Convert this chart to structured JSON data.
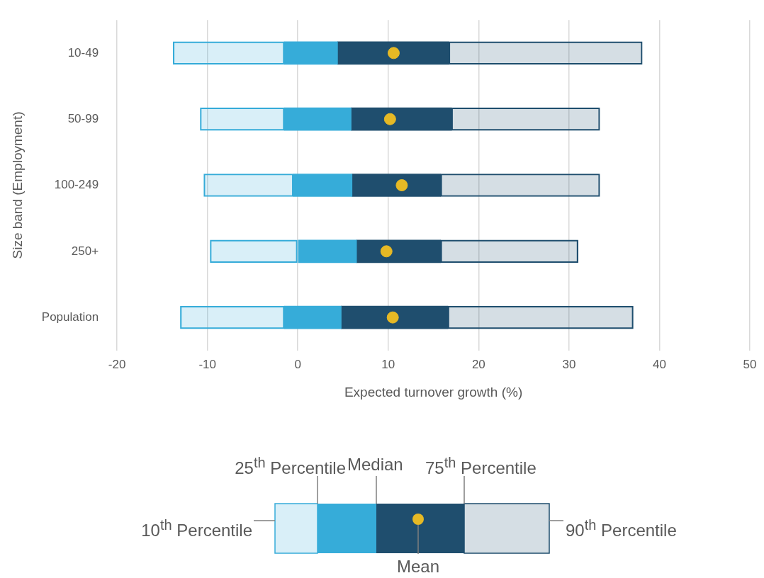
{
  "chart_data": {
    "type": "bar",
    "orientation": "horizontal",
    "xlabel": "Expected turnover growth (%)",
    "ylabel": "Size band (Employment)",
    "categories": [
      "10-49",
      "50-99",
      "100-249",
      "250+",
      "Population"
    ],
    "series": [
      {
        "color": "#36acd9",
        "base": [
          -13.8,
          -10.8,
          -10.4,
          -9.7,
          -13.0
        ],
        "values": [
          12.3,
          9.3,
          9.9,
          9.7,
          11.5
        ]
      },
      {
        "color": "#36acd9",
        "base": [
          -1.5,
          -1.5,
          -0.5,
          0.0,
          -1.5
        ],
        "values": [
          5.9,
          7.4,
          6.5,
          6.5,
          6.3
        ]
      },
      {
        "color": "#1f4e6e",
        "base": [
          4.4,
          5.9,
          6.0,
          6.5,
          4.8
        ],
        "values": [
          12.3,
          11.1,
          9.8,
          9.3,
          11.8
        ]
      },
      {
        "color": "#1f4e6e",
        "base": [
          16.7,
          17.0,
          15.8,
          15.8,
          16.6
        ],
        "values": [
          21.4,
          16.4,
          17.6,
          15.2,
          20.5
        ]
      },
      {
        "type": "scatter",
        "color": "#e6b925",
        "x": [
          "10-49",
          "50-99",
          "100-249",
          "250+",
          "Population"
        ],
        "values": [
          10.6,
          10.2,
          11.5,
          9.8,
          10.5
        ]
      }
    ],
    "marker": "circle",
    "xlim": [
      -20,
      50
    ],
    "xticks": [
      -20,
      -10,
      0,
      10,
      20,
      30,
      40,
      50
    ],
    "grid": "x",
    "annotations": [
      "10$^{th}$ Percentile",
      "25$^{th}$ Percentile",
      "Median",
      "75$^{th}$ Percentile",
      "90$^{th}$ Percentile",
      "Mean"
    ]
  }
}
